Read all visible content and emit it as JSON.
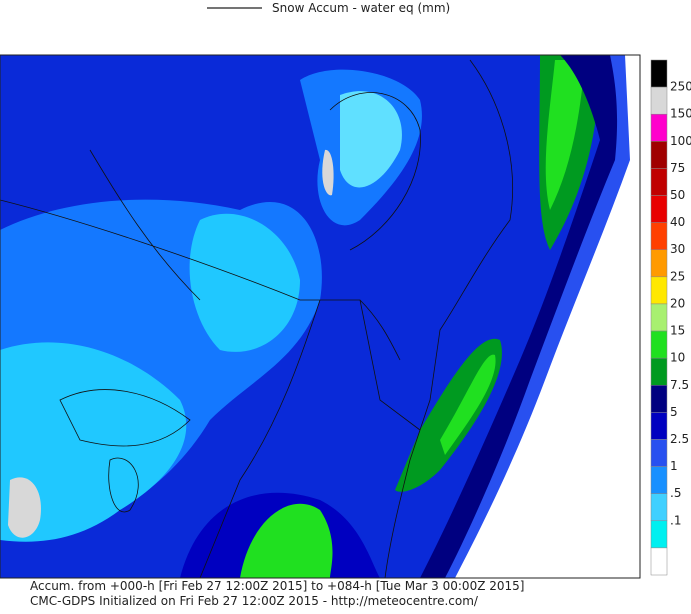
{
  "header": {
    "legend_text": "Snow Accum - water eq (mm)"
  },
  "colorbar": {
    "labels": [
      "250",
      "150",
      "100",
      "75",
      "50",
      "40",
      "30",
      "25",
      "20",
      "15",
      "10",
      "7.5",
      "5",
      "2.5",
      "1",
      ".5",
      ".1"
    ],
    "colors": [
      "#000000",
      "#d8d8d8",
      "#ff00cc",
      "#a00000",
      "#c00000",
      "#e80000",
      "#ff4000",
      "#ff9a00",
      "#ffe800",
      "#a8f070",
      "#20e020",
      "#009a20",
      "#000080",
      "#0000c0",
      "#2850f0",
      "#1890ff",
      "#40d0ff",
      "#00f0f0",
      "#ffffff"
    ]
  },
  "footer": {
    "line1": "Accum. from +000-h [Fri Feb 27 12:00Z 2015] to +084-h [Tue Mar 3 00:00Z 2015]",
    "line2": "CMC-GDPS Initialized on Fri Feb 27 12:00Z 2015 - http://meteocentre.com/"
  }
}
